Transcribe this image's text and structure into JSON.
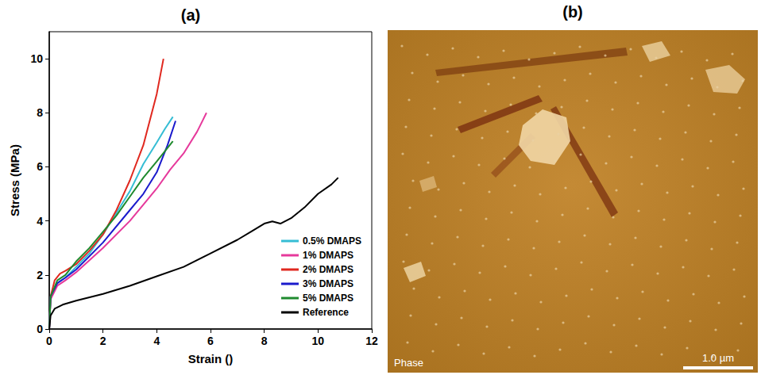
{
  "chart_data": {
    "type": "line",
    "title": "(a)",
    "x_label": "Strain ()",
    "y_label": "Stress (MPa)",
    "xlim": [
      0,
      12
    ],
    "xticks": [
      0,
      2,
      4,
      6,
      8,
      10,
      12
    ],
    "ylim": [
      0,
      11
    ],
    "yticks": [
      0,
      2,
      4,
      6,
      8,
      10
    ],
    "grid": false,
    "legend": "lower right",
    "series": [
      {
        "name": "0.5% DMAPS",
        "color": "#35bdd4",
        "x": [
          0,
          0.05,
          0.3,
          0.6,
          1,
          1.5,
          2,
          2.5,
          3,
          3.5,
          4,
          4.3,
          4.6
        ],
        "values": [
          0,
          1.2,
          1.7,
          1.9,
          2.3,
          2.8,
          3.5,
          4.3,
          5.1,
          6.1,
          6.9,
          7.4,
          7.85
        ]
      },
      {
        "name": "1% DMAPS",
        "color": "#e6399b",
        "x": [
          0,
          0.05,
          0.3,
          0.6,
          1,
          2,
          3,
          4,
          4.5,
          5,
          5.5,
          5.85
        ],
        "values": [
          0,
          1.1,
          1.6,
          1.8,
          2.1,
          3.0,
          4.0,
          5.2,
          5.9,
          6.5,
          7.3,
          8.0
        ]
      },
      {
        "name": "2% DMAPS",
        "color": "#e0281f",
        "x": [
          0,
          0.05,
          0.2,
          0.4,
          0.6,
          1,
          1.5,
          2,
          2.5,
          3,
          3.5,
          4,
          4.25
        ],
        "values": [
          0,
          1.2,
          1.8,
          2.05,
          2.15,
          2.4,
          2.9,
          3.5,
          4.4,
          5.5,
          6.8,
          8.7,
          10.0
        ]
      },
      {
        "name": "3% DMAPS",
        "color": "#1a1acc",
        "x": [
          0,
          0.05,
          0.3,
          0.6,
          1,
          2,
          3,
          3.5,
          4,
          4.4,
          4.7
        ],
        "values": [
          0,
          1.2,
          1.7,
          1.9,
          2.2,
          3.2,
          4.4,
          5.0,
          5.8,
          6.8,
          7.7
        ]
      },
      {
        "name": "5% DMAPS",
        "color": "#1f8a2e",
        "x": [
          0,
          0.05,
          0.3,
          0.6,
          1,
          1.5,
          2,
          2.5,
          3,
          3.5,
          4,
          4.6
        ],
        "values": [
          0,
          1.2,
          1.8,
          2.0,
          2.5,
          3.0,
          3.6,
          4.2,
          4.9,
          5.6,
          6.2,
          6.95
        ]
      },
      {
        "name": "Reference",
        "color": "#000000",
        "x": [
          0,
          0.05,
          0.2,
          0.5,
          1,
          2,
          3,
          4,
          5,
          6,
          7,
          7.5,
          8,
          8.3,
          8.6,
          9,
          9.5,
          10,
          10.5,
          10.75
        ],
        "values": [
          0,
          0.5,
          0.75,
          0.9,
          1.05,
          1.3,
          1.6,
          1.95,
          2.3,
          2.8,
          3.3,
          3.6,
          3.9,
          3.98,
          3.9,
          4.1,
          4.5,
          5.0,
          5.35,
          5.6
        ]
      }
    ]
  },
  "image": {
    "title": "(b)",
    "label": "Phase",
    "scale_bar_label": "1.0 µm"
  }
}
